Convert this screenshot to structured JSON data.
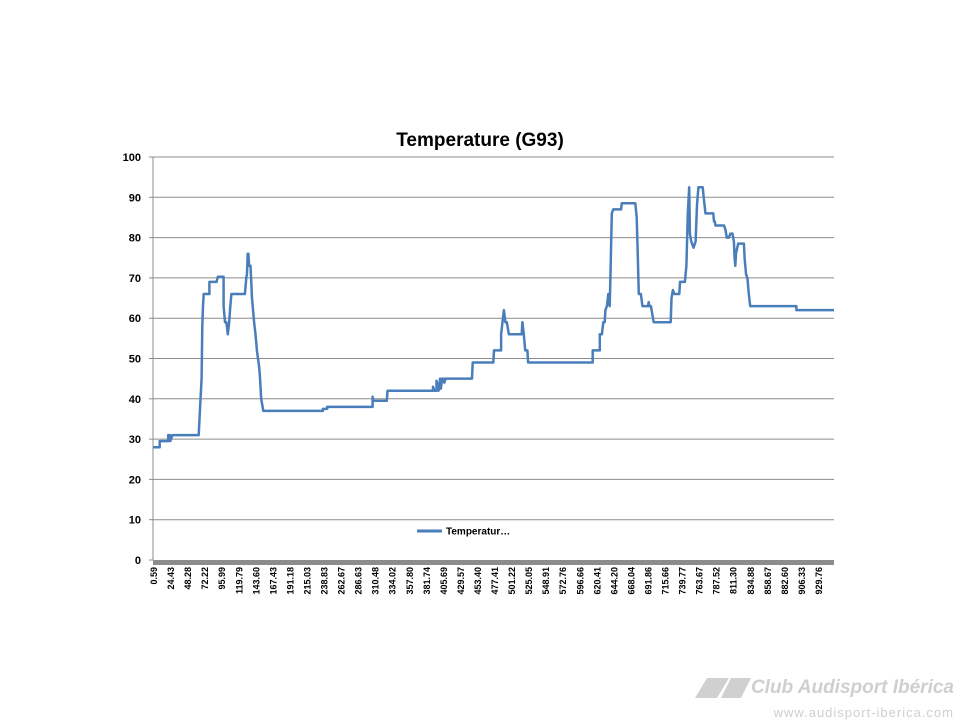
{
  "chart_data": {
    "type": "line",
    "title": "Temperature (G93)",
    "ylim": [
      0,
      100
    ],
    "yticks": [
      "0",
      "10",
      "20",
      "30",
      "40",
      "50",
      "60",
      "70",
      "80",
      "90",
      "100"
    ],
    "xtick_labels": [
      "0.59",
      "24.43",
      "48.28",
      "72.22",
      "95.99",
      "119.79",
      "143.60",
      "167.43",
      "191.18",
      "215.03",
      "238.83",
      "262.67",
      "286.63",
      "310.48",
      "334.02",
      "357.80",
      "381.74",
      "405.69",
      "429.57",
      "453.40",
      "477.41",
      "501.22",
      "525.05",
      "548.91",
      "572.76",
      "596.66",
      "620.41",
      "644.20",
      "668.04",
      "691.86",
      "715.66",
      "739.77",
      "763.67",
      "787.52",
      "811.30",
      "834.88",
      "858.67",
      "882.60",
      "906.33",
      "929.76"
    ],
    "xlim": [
      0.59,
      960
    ],
    "grid": "horizontal",
    "legend": "bottom-center",
    "series": [
      {
        "name": "Temperatur…",
        "color": "#4a7ebb",
        "points": [
          [
            0.6,
            28
          ],
          [
            10,
            28
          ],
          [
            10,
            29.5
          ],
          [
            22,
            29.5
          ],
          [
            22,
            31
          ],
          [
            25,
            31
          ],
          [
            25,
            29.5
          ],
          [
            28,
            31
          ],
          [
            65,
            31
          ],
          [
            67,
            38
          ],
          [
            69,
            45
          ],
          [
            70,
            58
          ],
          [
            71,
            63
          ],
          [
            72,
            66
          ],
          [
            76,
            66
          ],
          [
            80,
            66
          ],
          [
            80,
            69
          ],
          [
            90,
            69
          ],
          [
            92,
            70.3
          ],
          [
            100,
            70.3
          ],
          [
            100,
            63
          ],
          [
            102,
            59
          ],
          [
            104,
            59
          ],
          [
            106,
            56
          ],
          [
            108,
            59
          ],
          [
            109,
            62
          ],
          [
            111,
            66
          ],
          [
            130,
            66
          ],
          [
            131,
            68
          ],
          [
            132,
            70
          ],
          [
            133,
            71
          ],
          [
            134,
            76
          ],
          [
            135,
            76
          ],
          [
            136,
            73
          ],
          [
            138,
            73
          ],
          [
            140,
            65
          ],
          [
            143,
            59
          ],
          [
            145,
            56
          ],
          [
            147,
            52
          ],
          [
            150,
            48
          ],
          [
            151,
            46
          ],
          [
            153,
            40
          ],
          [
            156,
            37
          ],
          [
            240,
            37
          ],
          [
            240,
            37.5
          ],
          [
            246,
            37.5
          ],
          [
            246,
            38
          ],
          [
            310,
            38
          ],
          [
            310,
            40.5
          ],
          [
            311,
            39.5
          ],
          [
            330,
            39.5
          ],
          [
            331,
            42
          ],
          [
            395,
            42
          ],
          [
            395,
            43
          ],
          [
            397,
            42
          ],
          [
            400,
            42
          ],
          [
            400,
            44.5
          ],
          [
            403,
            42
          ],
          [
            405,
            45
          ],
          [
            406,
            42.5
          ],
          [
            408,
            45
          ],
          [
            410,
            45
          ],
          [
            411,
            44
          ],
          [
            413,
            45
          ],
          [
            450,
            45
          ],
          [
            451,
            49
          ],
          [
            480,
            49
          ],
          [
            481,
            52
          ],
          [
            491,
            52
          ],
          [
            491,
            56
          ],
          [
            493,
            59
          ],
          [
            495,
            62
          ],
          [
            497,
            59
          ],
          [
            499,
            59
          ],
          [
            502,
            56
          ],
          [
            520,
            56
          ],
          [
            521,
            59
          ],
          [
            523,
            56
          ],
          [
            525,
            52
          ],
          [
            528,
            52
          ],
          [
            529,
            49
          ],
          [
            620,
            49
          ],
          [
            620,
            52
          ],
          [
            630,
            52
          ],
          [
            630,
            56
          ],
          [
            633,
            56
          ],
          [
            635,
            59
          ],
          [
            637,
            59
          ],
          [
            638,
            62
          ],
          [
            640,
            63
          ],
          [
            642,
            66
          ],
          [
            644,
            63
          ],
          [
            645,
            70
          ],
          [
            647,
            86
          ],
          [
            649,
            87
          ],
          [
            660,
            87
          ],
          [
            661,
            88.5
          ],
          [
            680,
            88.5
          ],
          [
            682,
            85
          ],
          [
            683,
            79
          ],
          [
            685,
            66
          ],
          [
            688,
            66
          ],
          [
            690,
            63
          ],
          [
            698,
            63
          ],
          [
            699,
            64
          ],
          [
            700,
            63
          ],
          [
            702,
            63
          ],
          [
            704,
            61
          ],
          [
            706,
            59
          ],
          [
            730,
            59
          ],
          [
            731,
            65
          ],
          [
            733,
            67
          ],
          [
            735,
            66
          ],
          [
            742,
            66
          ],
          [
            743,
            69
          ],
          [
            750,
            69
          ],
          [
            752,
            73
          ],
          [
            754,
            86
          ],
          [
            756,
            92.5
          ],
          [
            757,
            81
          ],
          [
            759,
            79
          ],
          [
            762,
            77.5
          ],
          [
            765,
            79
          ],
          [
            767,
            88
          ],
          [
            769,
            92.5
          ],
          [
            775,
            92.5
          ],
          [
            777,
            89
          ],
          [
            779,
            86
          ],
          [
            790,
            86
          ],
          [
            791,
            84
          ],
          [
            792,
            84
          ],
          [
            793,
            83
          ],
          [
            805,
            83
          ],
          [
            807,
            82
          ],
          [
            809,
            80
          ],
          [
            812,
            80
          ],
          [
            814,
            81
          ],
          [
            817,
            81
          ],
          [
            818,
            80
          ],
          [
            819,
            79
          ],
          [
            820,
            75
          ],
          [
            821,
            73
          ],
          [
            822,
            76
          ],
          [
            823,
            77
          ],
          [
            825,
            78.5
          ],
          [
            833,
            78.5
          ],
          [
            834,
            75
          ],
          [
            836,
            71
          ],
          [
            838,
            70
          ],
          [
            840,
            66
          ],
          [
            842,
            63
          ],
          [
            907,
            63
          ],
          [
            907,
            62
          ],
          [
            960,
            62
          ]
        ]
      }
    ]
  },
  "watermark": {
    "name": "Club Audisport Ibérica",
    "url": "www.audisport-iberica.com",
    "logo_color": "#d0d0d0"
  }
}
